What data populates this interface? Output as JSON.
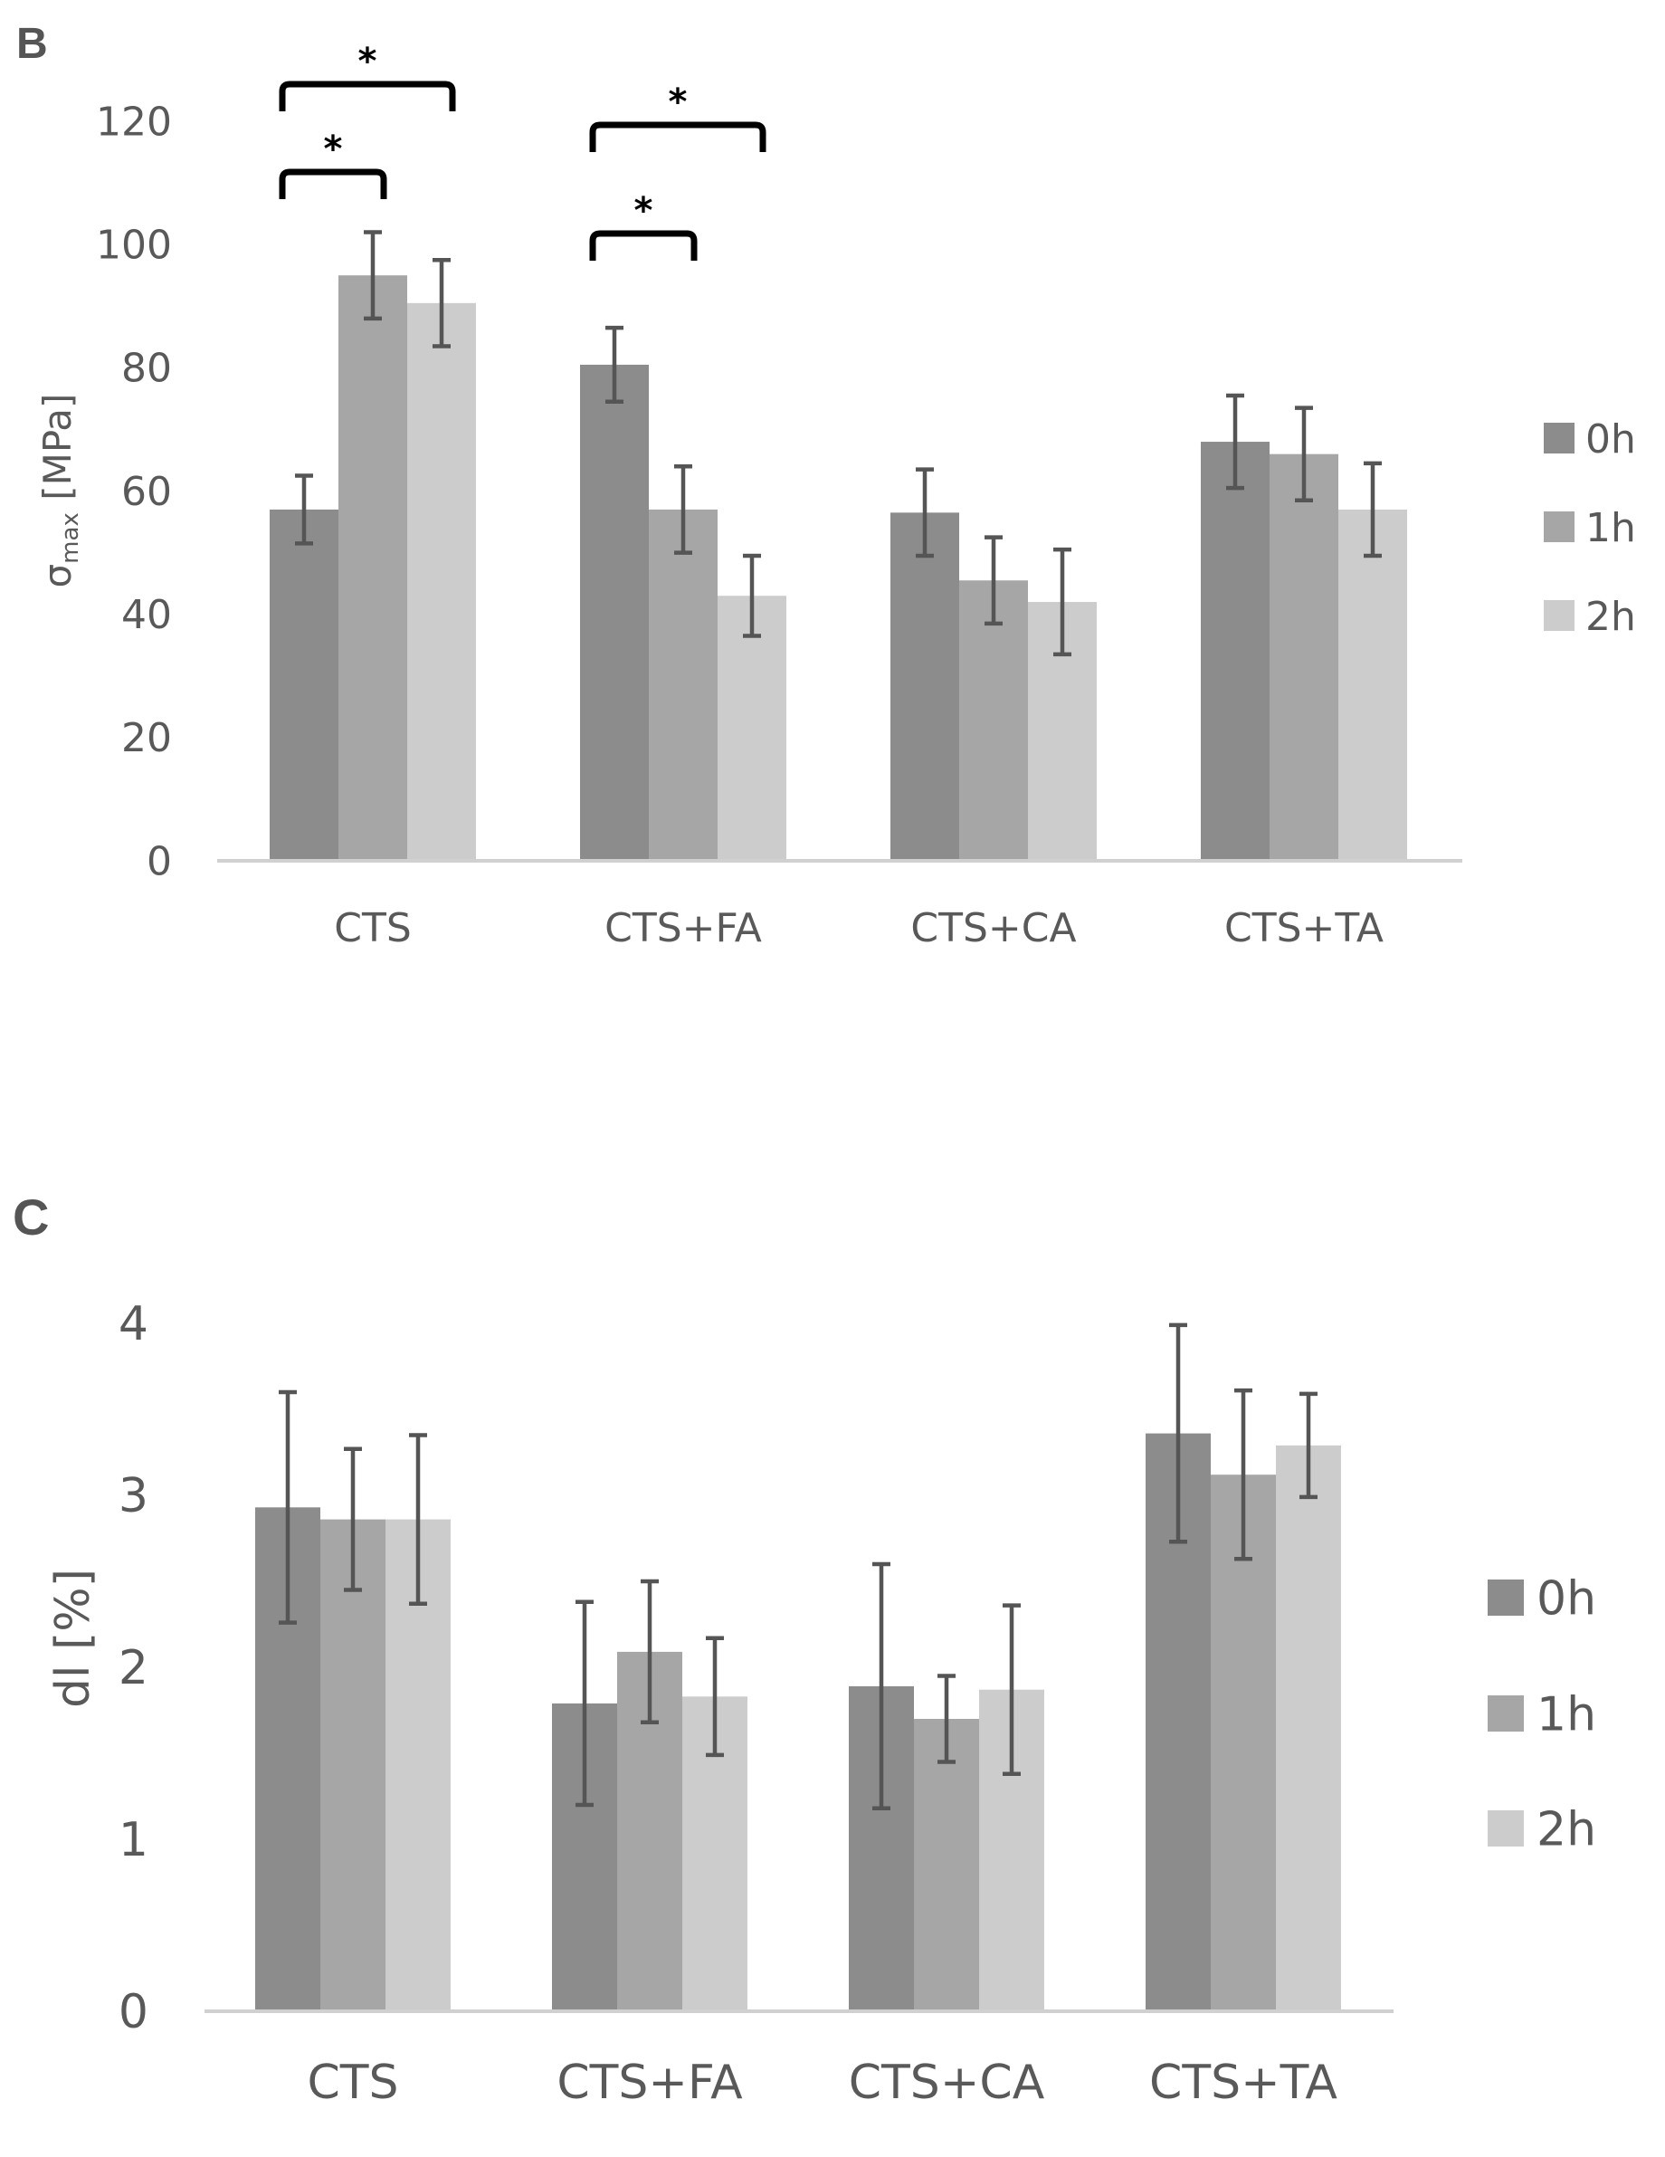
{
  "series_names": [
    "0h",
    "1h",
    "2h"
  ],
  "colors": {
    "s0": "#8c8c8c",
    "s1": "#a6a6a6",
    "s2": "#cccccc",
    "axis": "#d0d0d0",
    "errorbar": "#555555",
    "text": "#595959"
  },
  "chart_data": [
    {
      "panel": "B",
      "type": "bar",
      "categories": [
        "CTS",
        "CTS+FA",
        "CTS+CA",
        "CTS+TA"
      ],
      "series": [
        {
          "name": "0h",
          "values": [
            57,
            80.5,
            56.5,
            68
          ],
          "errors": [
            5.5,
            6,
            7,
            7.5
          ]
        },
        {
          "name": "1h",
          "values": [
            95,
            57,
            45.5,
            66
          ],
          "errors": [
            7,
            7,
            7,
            7.5
          ]
        },
        {
          "name": "2h",
          "values": [
            90.5,
            43,
            42,
            57
          ],
          "errors": [
            7,
            6.5,
            8.5,
            7.5
          ]
        }
      ],
      "ylabel": "σmax [MPa]",
      "ylabel_main": "σ",
      "ylabel_sub": "max",
      "ylabel_unit": " [MPa]",
      "ylim": [
        0,
        120
      ],
      "yticks": [
        "0",
        "20",
        "40",
        "60",
        "80",
        "100",
        "120"
      ],
      "significance": [
        {
          "category": 0,
          "from_series": 0,
          "to_series": 1,
          "label": "*"
        },
        {
          "category": 0,
          "from_series": 0,
          "to_series": 2,
          "label": "*"
        },
        {
          "category": 1,
          "from_series": 0,
          "to_series": 1,
          "label": "*"
        },
        {
          "category": 1,
          "from_series": 0,
          "to_series": 2,
          "label": "*"
        }
      ],
      "legend": [
        "0h",
        "1h",
        "2h"
      ]
    },
    {
      "panel": "C",
      "type": "bar",
      "categories": [
        "CTS",
        "CTS+FA",
        "CTS+CA",
        "CTS+TA"
      ],
      "series": [
        {
          "name": "0h",
          "values": [
            2.93,
            1.79,
            1.89,
            3.36
          ],
          "errors": [
            0.67,
            0.59,
            0.71,
            0.63
          ]
        },
        {
          "name": "1h",
          "values": [
            2.86,
            2.09,
            1.7,
            3.12
          ],
          "errors": [
            0.41,
            0.41,
            0.25,
            0.49
          ]
        },
        {
          "name": "2h",
          "values": [
            2.86,
            1.83,
            1.87,
            3.29
          ],
          "errors": [
            0.49,
            0.34,
            0.49,
            0.3
          ]
        }
      ],
      "ylabel": "dl [%]",
      "ylim": [
        0,
        4
      ],
      "yticks": [
        "0",
        "1",
        "2",
        "3",
        "4"
      ],
      "legend": [
        "0h",
        "1h",
        "2h"
      ]
    }
  ]
}
